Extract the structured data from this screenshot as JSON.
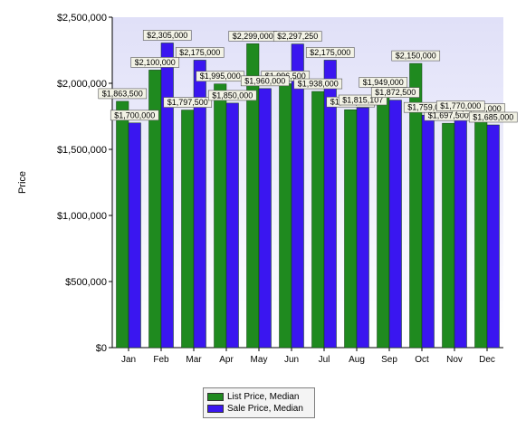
{
  "chart_data": {
    "type": "bar",
    "title": "",
    "xlabel": "",
    "ylabel": "Price",
    "ylim": [
      0,
      2500000
    ],
    "yticks": [
      0,
      500000,
      1000000,
      1500000,
      2000000,
      2500000
    ],
    "ytick_labels": [
      "$0",
      "$500,000",
      "$1,000,000",
      "$1,500,000",
      "$2,000,000",
      "$2,500,000"
    ],
    "categories": [
      "Jan",
      "Feb",
      "Mar",
      "Apr",
      "May",
      "Jun",
      "Jul",
      "Aug",
      "Sep",
      "Oct",
      "Nov",
      "Dec"
    ],
    "legend_position": "bottom",
    "grid": false,
    "series": [
      {
        "name": "List Price, Median",
        "color": "#1f8a1f",
        "values": [
          1863500,
          2100000,
          1797500,
          1995000,
          2299000,
          1996500,
          1938000,
          1800000,
          1949000,
          2150000,
          1697500,
          1749000
        ],
        "labels": [
          "$1,863,500",
          "$2,100,000",
          "$1,797,500",
          "$1,995,000",
          "$2,299,000",
          "$1,996,500",
          "$1,938,000",
          "$1,800,000",
          "$1,949,000",
          "$2,150,000",
          "$1,697,500",
          "$1,749,000"
        ]
      },
      {
        "name": "Sale Price, Median",
        "color": "#3a16f0",
        "values": [
          1700000,
          2305000,
          2175000,
          1850000,
          1960000,
          2297250,
          2175000,
          1815107,
          1872500,
          1759000,
          1770000,
          1685000
        ],
        "labels": [
          "$1,700,000",
          "$2,305,000",
          "$2,175,000",
          "$1,850,000",
          "$1,960,000",
          "$2,297,250",
          "$2,175,000",
          "$1,815,107",
          "$1,872,500",
          "$1,759,000",
          "$1,770,000",
          "$1,685,000"
        ]
      }
    ]
  }
}
